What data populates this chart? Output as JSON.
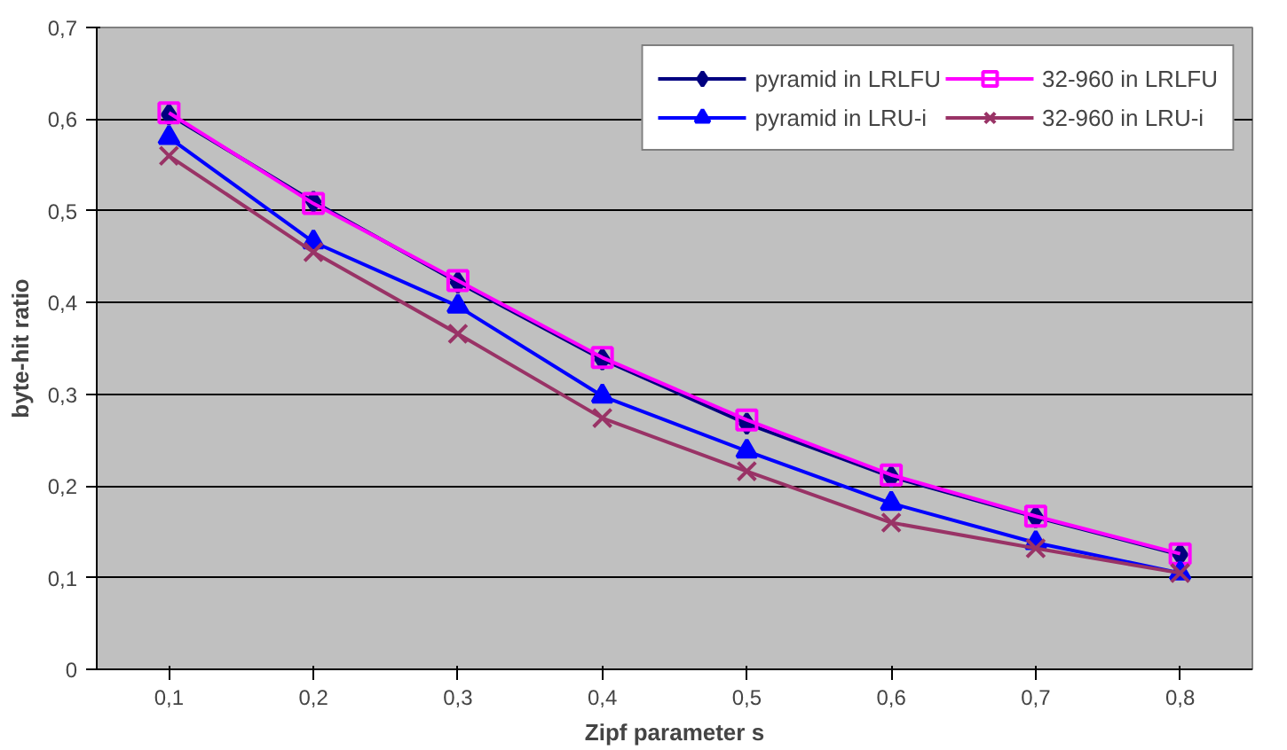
{
  "chart_data": {
    "type": "line",
    "xlabel": "Zipf parameter s",
    "ylabel": "byte-hit ratio",
    "categories": [
      "0,1",
      "0,2",
      "0,3",
      "0,4",
      "0,5",
      "0,6",
      "0,7",
      "0,8"
    ],
    "series": [
      {
        "name": "pyramid in LRLFU",
        "color": "#000080",
        "marker": "diamond",
        "values": [
          0.605,
          0.51,
          0.422,
          0.338,
          0.268,
          0.21,
          0.166,
          0.125
        ]
      },
      {
        "name": "32-960 in LRLFU",
        "color": "#ff00ff",
        "marker": "square",
        "values": [
          0.607,
          0.508,
          0.424,
          0.34,
          0.272,
          0.212,
          0.167,
          0.126
        ]
      },
      {
        "name": "pyramid in LRU-i",
        "color": "#0000ff",
        "marker": "triangle",
        "values": [
          0.58,
          0.466,
          0.396,
          0.298,
          0.238,
          0.181,
          0.138,
          0.105
        ]
      },
      {
        "name": "32-960 in LRU-i",
        "color": "#993366",
        "marker": "cross",
        "values": [
          0.56,
          0.455,
          0.366,
          0.274,
          0.216,
          0.16,
          0.132,
          0.105
        ]
      }
    ],
    "ylim": [
      0,
      0.7
    ],
    "yticks": [
      {
        "value": 0,
        "label": "0"
      },
      {
        "value": 0.1,
        "label": "0,1"
      },
      {
        "value": 0.2,
        "label": "0,2"
      },
      {
        "value": 0.3,
        "label": "0,3"
      },
      {
        "value": 0.4,
        "label": "0,4"
      },
      {
        "value": 0.5,
        "label": "0,5"
      },
      {
        "value": 0.6,
        "label": "0,6"
      },
      {
        "value": 0.7,
        "label": "0,7"
      }
    ],
    "grid": "y",
    "legend": "top right",
    "line_style": "solid"
  }
}
